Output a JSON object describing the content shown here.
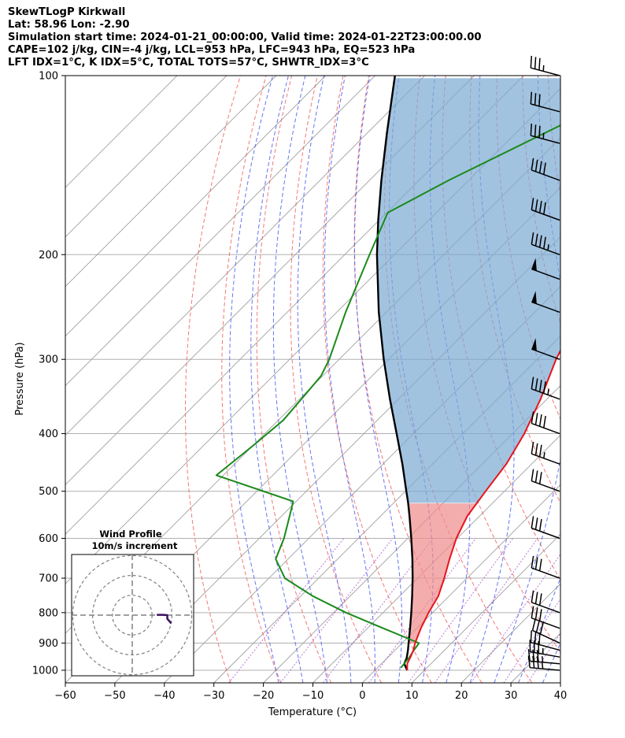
{
  "header": {
    "line1": "SkewTLogP Kirkwall",
    "line2": "Lat: 58.96   Lon: -2.90",
    "line3": "Simulation start time: 2024-01-21_00:00:00, Valid time: 2024-01-22T23:00:00.00",
    "line4": "CAPE=102 j/kg, CIN=-4 j/kg, LCL=953 hPa, LFC=943 hPa, EQ=523 hPa",
    "line5": "LFT IDX=1$^\\circ$C, K IDX=5$^\\circ$C, TOTAL TOTS=57$^\\circ$C, SHWTR_IDX=3$^\\circ$C"
  },
  "colors": {
    "temperature": "#e8141b",
    "dewpoint": "#1a8a1a",
    "parcel": "#000000",
    "cape_fill": "#7aa9d3",
    "cin_fill": "#f08a8a",
    "dry_adiabat": "#f06060",
    "moist_adiabat": "#4c5cf0",
    "mixing_ratio": "#a040c8",
    "isotherm": "#a0a0a0",
    "hodograph": "#3a1060"
  },
  "chart_data": {
    "type": "skew-t log-p",
    "xlabel": "Temperature ($^\\circ$C)",
    "ylabel": "Pressure (hPa)",
    "xlim": [
      -60,
      40
    ],
    "ylim": [
      1050,
      100
    ],
    "y_scale": "log",
    "x_ticks": [
      -60,
      -50,
      -40,
      -30,
      -20,
      -10,
      0,
      10,
      20,
      30,
      40
    ],
    "y_ticks": [
      1000,
      900,
      800,
      700,
      600,
      500,
      400,
      300,
      200,
      100
    ],
    "grid": true,
    "temperature_profile": [
      {
        "p": 1000,
        "t": 6.5
      },
      {
        "p": 975,
        "t": 5.2
      },
      {
        "p": 950,
        "t": 4.5
      },
      {
        "p": 925,
        "t": 3.7
      },
      {
        "p": 900,
        "t": 2.6
      },
      {
        "p": 850,
        "t": 0.8
      },
      {
        "p": 800,
        "t": -0.8
      },
      {
        "p": 750,
        "t": -2.2
      },
      {
        "p": 700,
        "t": -4.6
      },
      {
        "p": 650,
        "t": -7.4
      },
      {
        "p": 600,
        "t": -10.2
      },
      {
        "p": 550,
        "t": -12.5
      },
      {
        "p": 500,
        "t": -13.8
      },
      {
        "p": 450,
        "t": -15.1
      },
      {
        "p": 400,
        "t": -17.6
      },
      {
        "p": 350,
        "t": -21.3
      },
      {
        "p": 300,
        "t": -26.2
      },
      {
        "p": 250,
        "t": -30.8
      },
      {
        "p": 220,
        "t": -33.9
      },
      {
        "p": 200,
        "t": -36.0
      },
      {
        "p": 180,
        "t": -37.0
      },
      {
        "p": 160,
        "t": -37.4
      },
      {
        "p": 150,
        "t": -37.1
      },
      {
        "p": 130,
        "t": -36.7
      },
      {
        "p": 120,
        "t": -36.5
      },
      {
        "p": 110,
        "t": -36.3
      },
      {
        "p": 100,
        "t": -35.5
      }
    ],
    "dewpoint_profile": [
      {
        "p": 990,
        "t": 4.7
      },
      {
        "p": 950,
        "t": 4.3
      },
      {
        "p": 925,
        "t": 3.8
      },
      {
        "p": 900,
        "t": 3.4
      },
      {
        "p": 850,
        "t": -6.8
      },
      {
        "p": 800,
        "t": -17.5
      },
      {
        "p": 750,
        "t": -27.6
      },
      {
        "p": 700,
        "t": -36.8
      },
      {
        "p": 650,
        "t": -42.5
      },
      {
        "p": 600,
        "t": -45.0
      },
      {
        "p": 550,
        "t": -48.4
      },
      {
        "p": 520,
        "t": -50.6
      },
      {
        "p": 470,
        "t": -71.4
      },
      {
        "p": 420,
        "t": -70.0
      },
      {
        "p": 380,
        "t": -69.0
      },
      {
        "p": 350,
        "t": -69.6
      },
      {
        "p": 320,
        "t": -70.3
      },
      {
        "p": 300,
        "t": -72.0
      },
      {
        "p": 250,
        "t": -78.2
      },
      {
        "p": 200,
        "t": -85.0
      },
      {
        "p": 170,
        "t": -89.8
      },
      {
        "p": 150,
        "t": -84.0
      },
      {
        "p": 120,
        "t": -72.0
      },
      {
        "p": 100,
        "t": -63.5
      }
    ],
    "parcel_profile": [
      {
        "p": 1000,
        "t": 6.5
      },
      {
        "p": 975,
        "t": 4.6
      },
      {
        "p": 953,
        "t": 3.9
      },
      {
        "p": 925,
        "t": 2.6
      },
      {
        "p": 900,
        "t": 1.3
      },
      {
        "p": 850,
        "t": -1.4
      },
      {
        "p": 800,
        "t": -4.3
      },
      {
        "p": 750,
        "t": -7.5
      },
      {
        "p": 700,
        "t": -11.0
      },
      {
        "p": 650,
        "t": -14.9
      },
      {
        "p": 600,
        "t": -19.3
      },
      {
        "p": 550,
        "t": -24.2
      },
      {
        "p": 523,
        "t": -27.1
      },
      {
        "p": 500,
        "t": -29.8
      },
      {
        "p": 450,
        "t": -36.1
      },
      {
        "p": 400,
        "t": -43.4
      },
      {
        "p": 350,
        "t": -51.7
      },
      {
        "p": 300,
        "t": -61.0
      },
      {
        "p": 250,
        "t": -71.5
      },
      {
        "p": 200,
        "t": -83.5
      },
      {
        "p": 175,
        "t": -90.2
      },
      {
        "p": 150,
        "t": -97.6
      },
      {
        "p": 125,
        "t": -106.0
      },
      {
        "p": 100,
        "t": -116.0
      }
    ],
    "wind_barbs": [
      {
        "p": 1000,
        "speed_kt": 35,
        "dir_deg": 275
      },
      {
        "p": 975,
        "speed_kt": 35,
        "dir_deg": 275
      },
      {
        "p": 950,
        "speed_kt": 35,
        "dir_deg": 280
      },
      {
        "p": 925,
        "speed_kt": 30,
        "dir_deg": 285
      },
      {
        "p": 900,
        "speed_kt": 30,
        "dir_deg": 295
      },
      {
        "p": 850,
        "speed_kt": 30,
        "dir_deg": 290
      },
      {
        "p": 800,
        "speed_kt": 30,
        "dir_deg": 290
      },
      {
        "p": 700,
        "speed_kt": 30,
        "dir_deg": 290
      },
      {
        "p": 600,
        "speed_kt": 30,
        "dir_deg": 290
      },
      {
        "p": 500,
        "speed_kt": 30,
        "dir_deg": 290
      },
      {
        "p": 450,
        "speed_kt": 35,
        "dir_deg": 290
      },
      {
        "p": 400,
        "speed_kt": 40,
        "dir_deg": 290
      },
      {
        "p": 350,
        "speed_kt": 45,
        "dir_deg": 290
      },
      {
        "p": 300,
        "speed_kt": 50,
        "dir_deg": 290
      },
      {
        "p": 250,
        "speed_kt": 50,
        "dir_deg": 290
      },
      {
        "p": 220,
        "speed_kt": 50,
        "dir_deg": 290
      },
      {
        "p": 200,
        "speed_kt": 45,
        "dir_deg": 290
      },
      {
        "p": 175,
        "speed_kt": 40,
        "dir_deg": 290
      },
      {
        "p": 150,
        "speed_kt": 40,
        "dir_deg": 290
      },
      {
        "p": 130,
        "speed_kt": 35,
        "dir_deg": 285
      },
      {
        "p": 115,
        "speed_kt": 30,
        "dir_deg": 285
      },
      {
        "p": 100,
        "speed_kt": 35,
        "dir_deg": 285
      }
    ],
    "hodograph": {
      "title": "Wind Profile",
      "subtitle": "10m/s increment",
      "ring_increment_ms": 10,
      "points_ms": [
        {
          "u": 11.9,
          "v": -7.5
        },
        {
          "u": 10.2,
          "v": -5.5
        },
        {
          "u": 8.3,
          "v": -3.3
        },
        {
          "u": 8.4,
          "v": -1.0
        },
        {
          "u": 8.2,
          "v": 0.0
        },
        {
          "u": 4.0,
          "v": 0.3
        },
        {
          "u": -1.3,
          "v": 0.3
        }
      ]
    }
  }
}
